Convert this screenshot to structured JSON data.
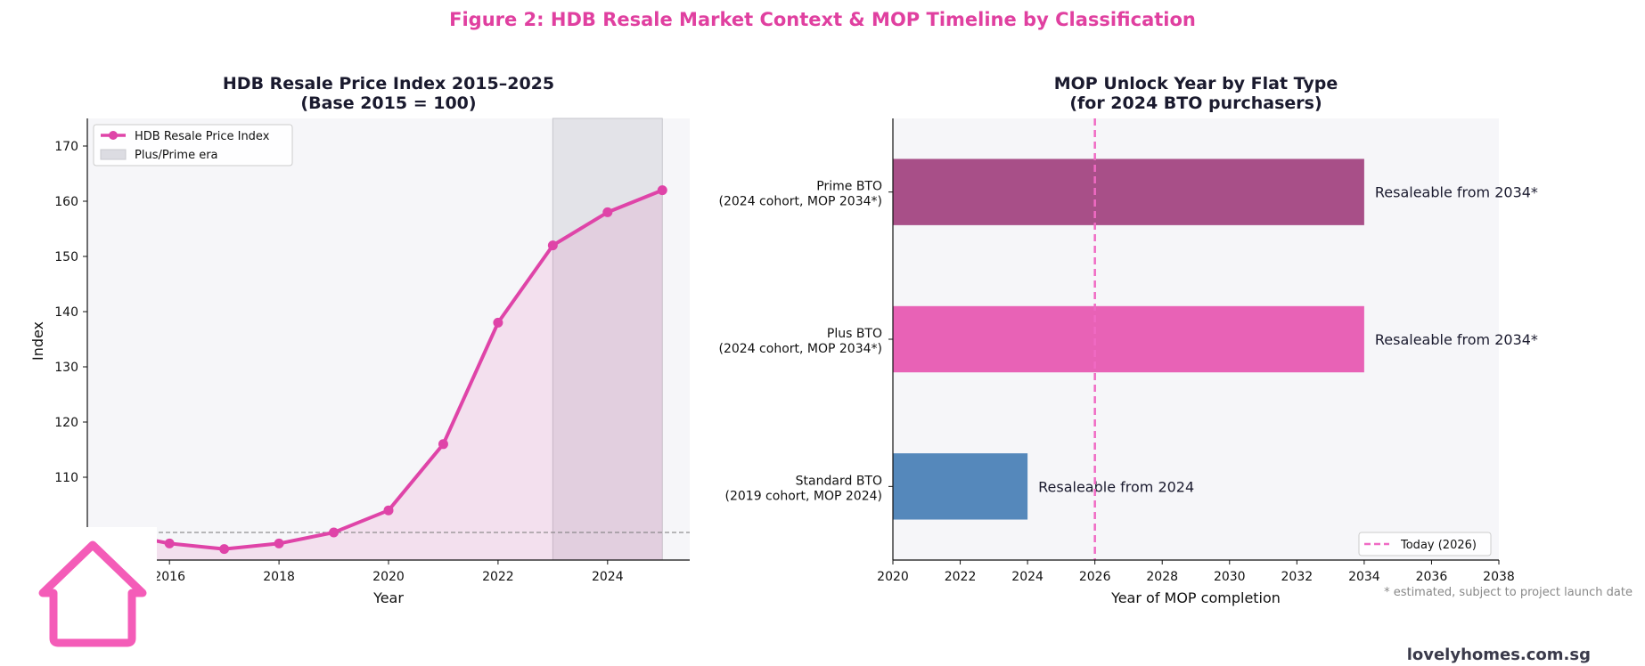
{
  "figure_title": "Figure 2: HDB Resale Market Context & MOP Timeline by Classification",
  "footnote": "* estimated, subject to project launch date",
  "brand": "lovelyhomes.com.sg",
  "logo_icon": "house-icon",
  "colors": {
    "accent": "#e040a0",
    "line": "#df44a8",
    "prime": "#a84f88",
    "plus": "#e862b6",
    "standard": "#5588bb",
    "today": "#f06ac4",
    "era_shade": "#dcdce2",
    "panel_bg": "#f6f6f9"
  },
  "chart_data": [
    {
      "type": "line",
      "title_lines": [
        "HDB Resale Price Index 2015–2025",
        "(Base 2015 = 100)"
      ],
      "xlabel": "Year",
      "ylabel": "Index",
      "x": [
        2015,
        2016,
        2017,
        2018,
        2019,
        2020,
        2021,
        2022,
        2023,
        2024,
        2025
      ],
      "series": [
        {
          "name": "HDB Resale Price Index",
          "values": [
            100,
            98,
            97,
            98,
            100,
            104,
            116,
            138,
            152,
            158,
            162
          ]
        }
      ],
      "xlim": [
        2014.5,
        2025.5
      ],
      "ylim": [
        95,
        175
      ],
      "xticks": [
        2016,
        2018,
        2020,
        2022,
        2024
      ],
      "yticks": [
        100,
        110,
        120,
        130,
        140,
        150,
        160,
        170
      ],
      "reference_line": 100,
      "shaded_span": {
        "label": "Plus/Prime era",
        "from": 2023,
        "to": 2025
      },
      "legend": "top-left",
      "grid": false
    },
    {
      "type": "bar",
      "orientation": "horizontal",
      "title_lines": [
        "MOP Unlock Year by Flat Type",
        "(for 2024 BTO purchasers)"
      ],
      "xlabel": "Year of MOP completion",
      "categories": [
        {
          "lines": [
            "Prime BTO",
            "(2024 cohort, MOP 2034*)"
          ],
          "value": 2034,
          "label": "Resaleable from 2034*",
          "color_key": "prime"
        },
        {
          "lines": [
            "Plus BTO",
            "(2024 cohort, MOP 2034*)"
          ],
          "value": 2034,
          "label": "Resaleable from 2034*",
          "color_key": "plus"
        },
        {
          "lines": [
            "Standard BTO",
            "(2019 cohort, MOP 2024)"
          ],
          "value": 2024,
          "label": "Resaleable from 2024",
          "color_key": "standard"
        }
      ],
      "bar_start": 2020,
      "xlim": [
        2020,
        2038
      ],
      "xticks": [
        2020,
        2022,
        2024,
        2026,
        2028,
        2030,
        2032,
        2034,
        2036,
        2038
      ],
      "today_line": {
        "value": 2026,
        "label": "Today (2026)"
      },
      "legend": "bottom-right",
      "grid": false
    }
  ]
}
